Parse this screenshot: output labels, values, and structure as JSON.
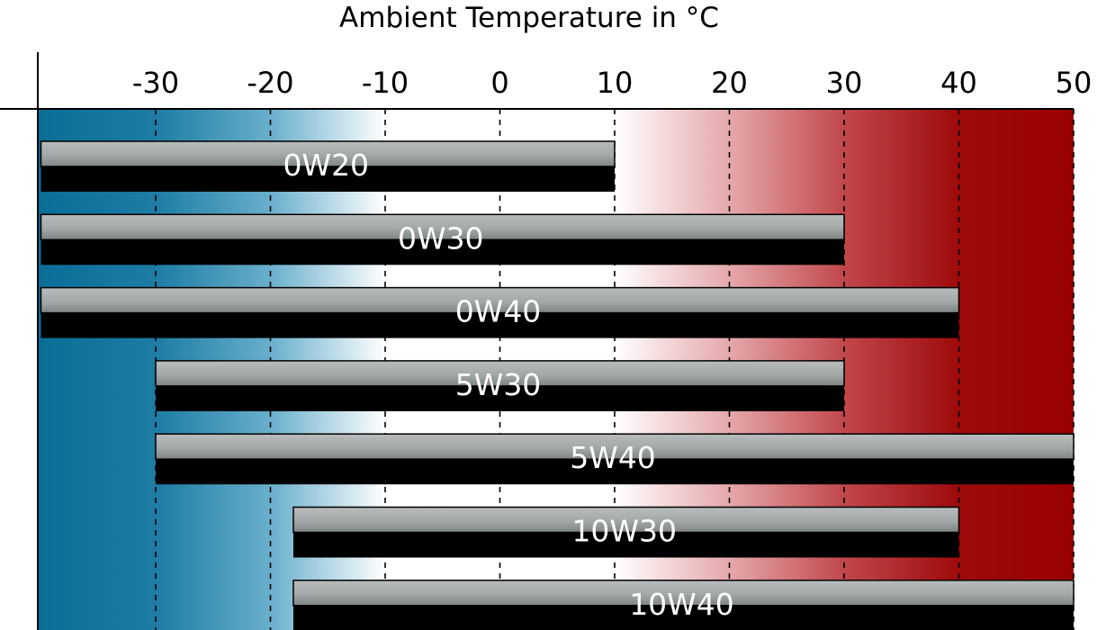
{
  "chart_data": {
    "type": "bar",
    "orientation": "horizontal",
    "title": "Ambient Temperature in °C",
    "xlabel": "Ambient Temperature in °C",
    "x_ticks": [
      -30,
      -20,
      -10,
      0,
      10,
      20,
      30,
      40,
      50
    ],
    "xlim": [
      -40,
      50
    ],
    "grid": "vertical dashed",
    "background_gradient": {
      "stops": [
        {
          "temp": -40,
          "color": "#0a6e98"
        },
        {
          "temp": -30,
          "color": "#1d7ca4"
        },
        {
          "temp": -20,
          "color": "#69afcc"
        },
        {
          "temp": -10,
          "color": "#ffffff"
        },
        {
          "temp": 10,
          "color": "#ffffff"
        },
        {
          "temp": 20,
          "color": "#e5a8ab"
        },
        {
          "temp": 30,
          "color": "#c0474c"
        },
        {
          "temp": 40,
          "color": "#9e0a0a"
        },
        {
          "temp": 50,
          "color": "#9a0000"
        }
      ]
    },
    "series": [
      {
        "label": "0W20",
        "min": -40,
        "max": 10
      },
      {
        "label": "0W30",
        "min": -40,
        "max": 30
      },
      {
        "label": "0W40",
        "min": -40,
        "max": 40
      },
      {
        "label": "5W30",
        "min": -30,
        "max": 30
      },
      {
        "label": "5W40",
        "min": -30,
        "max": 50
      },
      {
        "label": "10W30",
        "min": -18,
        "max": 40
      },
      {
        "label": "10W40",
        "min": -18,
        "max": 50
      }
    ],
    "colors": {
      "bar_top": "#b9bcbc",
      "bar_top_dark": "#7e8484",
      "bar_bottom": "#000000",
      "bar_text": "#ffffff"
    }
  }
}
